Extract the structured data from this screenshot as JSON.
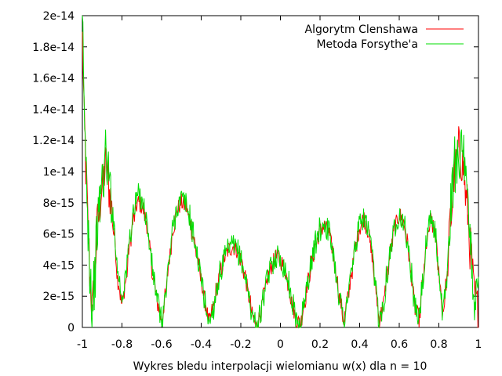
{
  "chart_data": {
    "type": "line",
    "title": "",
    "xlabel": "Wykres bledu interpolacji wielomianu w(x) dla n = 10",
    "ylabel": "",
    "xlim": [
      -1,
      1
    ],
    "ylim": [
      0,
      2e-14
    ],
    "x_ticks": [
      {
        "value": -1,
        "label": "-1"
      },
      {
        "value": -0.8,
        "label": "-0.8"
      },
      {
        "value": -0.6,
        "label": "-0.6"
      },
      {
        "value": -0.4,
        "label": "-0.4"
      },
      {
        "value": -0.2,
        "label": "-0.2"
      },
      {
        "value": 0,
        "label": "0"
      },
      {
        "value": 0.2,
        "label": "0.2"
      },
      {
        "value": 0.4,
        "label": "0.4"
      },
      {
        "value": 0.6,
        "label": "0.6"
      },
      {
        "value": 0.8,
        "label": "0.8"
      },
      {
        "value": 1,
        "label": "1"
      }
    ],
    "y_ticks": [
      {
        "value": 0,
        "label": "0"
      },
      {
        "value": 2e-15,
        "label": "2e-15"
      },
      {
        "value": 4e-15,
        "label": "4e-15"
      },
      {
        "value": 6e-15,
        "label": "6e-15"
      },
      {
        "value": 8e-15,
        "label": "8e-15"
      },
      {
        "value": 1e-14,
        "label": "1e-14"
      },
      {
        "value": 1.2e-14,
        "label": "1.2e-14"
      },
      {
        "value": 1.4e-14,
        "label": "1.4e-14"
      },
      {
        "value": 1.6e-14,
        "label": "1.6e-14"
      },
      {
        "value": 1.8e-14,
        "label": "1.8e-14"
      },
      {
        "value": 2e-14,
        "label": "2e-14"
      }
    ],
    "grid": false,
    "legend_position": "top-right",
    "series": [
      {
        "name": "Algorytm Clenshawa",
        "color": "#ff0000",
        "x": [
          -1,
          -0.99,
          -0.98,
          -0.97,
          -0.96,
          -0.95,
          -0.94,
          -0.92,
          -0.9,
          -0.88,
          -0.86,
          -0.84,
          -0.82,
          -0.8,
          -0.78,
          -0.76,
          -0.74,
          -0.72,
          -0.7,
          -0.68,
          -0.66,
          -0.64,
          -0.62,
          -0.6,
          -0.58,
          -0.56,
          -0.54,
          -0.52,
          -0.5,
          -0.48,
          -0.46,
          -0.44,
          -0.42,
          -0.4,
          -0.38,
          -0.36,
          -0.34,
          -0.32,
          -0.3,
          -0.28,
          -0.26,
          -0.24,
          -0.22,
          -0.2,
          -0.18,
          -0.16,
          -0.14,
          -0.12,
          -0.1,
          -0.08,
          -0.06,
          -0.04,
          -0.02,
          0,
          0.02,
          0.04,
          0.06,
          0.08,
          0.1,
          0.12,
          0.14,
          0.16,
          0.18,
          0.2,
          0.22,
          0.24,
          0.26,
          0.28,
          0.3,
          0.32,
          0.34,
          0.36,
          0.38,
          0.4,
          0.42,
          0.44,
          0.46,
          0.48,
          0.5,
          0.52,
          0.54,
          0.56,
          0.58,
          0.6,
          0.62,
          0.64,
          0.66,
          0.68,
          0.7,
          0.72,
          0.74,
          0.76,
          0.78,
          0.8,
          0.82,
          0.84,
          0.86,
          0.88,
          0.9,
          0.92,
          0.94,
          0.96,
          0.98,
          1
        ],
        "y": [
          1.85e-14,
          1.3e-14,
          9.5e-15,
          6e-15,
          3e-15,
          1e-15,
          3.5e-15,
          7e-15,
          9e-15,
          1.05e-14,
          8.5e-15,
          6e-15,
          3e-15,
          1.5e-15,
          3e-15,
          5.5e-15,
          7e-15,
          8e-15,
          7.8e-15,
          7e-15,
          5e-15,
          3e-15,
          1.5e-15,
          5e-16,
          2e-15,
          4.5e-15,
          6.5e-15,
          7.6e-15,
          8e-15,
          7.8e-15,
          7e-15,
          5.8e-15,
          4.5e-15,
          3e-15,
          1.6e-15,
          3e-16,
          1.2e-15,
          2.6e-15,
          3.7e-15,
          4.5e-15,
          5e-15,
          5.2e-15,
          5e-15,
          4.4e-15,
          3.4e-15,
          2e-15,
          7e-16,
          0,
          9e-16,
          2.2e-15,
          3.4e-15,
          4.1e-15,
          4.5e-15,
          4.3e-15,
          3.8e-15,
          2.8e-15,
          1.5e-15,
          5e-16,
          2e-16,
          1.5e-15,
          3e-15,
          4.3e-15,
          5.4e-15,
          6.2e-15,
          6.5e-15,
          6.2e-15,
          5.2e-15,
          3.6e-15,
          1.8e-15,
          5e-16,
          1.8e-15,
          3.6e-15,
          5.2e-15,
          6.4e-15,
          7e-15,
          6.3e-15,
          4.8e-15,
          2.5e-15,
          5e-16,
          1.5e-15,
          3.5e-15,
          5.2e-15,
          6.5e-15,
          7.2e-15,
          6.8e-15,
          5.5e-15,
          3.4e-15,
          1.2e-15,
          6e-16,
          3e-15,
          5.5e-15,
          6.8e-15,
          6e-15,
          3.5e-15,
          1e-15,
          3e-15,
          7e-15,
          1e-14,
          1.15e-14,
          1.05e-14,
          8e-15,
          5e-15,
          2e-15,
          1e-15
        ],
        "jitter": 6e-16
      },
      {
        "name": "Metoda Forsythe'a",
        "color": "#00dd00",
        "x": [
          -1,
          -0.99,
          -0.98,
          -0.97,
          -0.96,
          -0.95,
          -0.94,
          -0.92,
          -0.9,
          -0.88,
          -0.86,
          -0.84,
          -0.82,
          -0.8,
          -0.78,
          -0.76,
          -0.74,
          -0.72,
          -0.7,
          -0.68,
          -0.66,
          -0.64,
          -0.62,
          -0.6,
          -0.58,
          -0.56,
          -0.54,
          -0.52,
          -0.5,
          -0.48,
          -0.46,
          -0.44,
          -0.42,
          -0.4,
          -0.38,
          -0.36,
          -0.34,
          -0.32,
          -0.3,
          -0.28,
          -0.26,
          -0.24,
          -0.22,
          -0.2,
          -0.18,
          -0.16,
          -0.14,
          -0.12,
          -0.1,
          -0.08,
          -0.06,
          -0.04,
          -0.02,
          0,
          0.02,
          0.04,
          0.06,
          0.08,
          0.1,
          0.12,
          0.14,
          0.16,
          0.18,
          0.2,
          0.22,
          0.24,
          0.26,
          0.28,
          0.3,
          0.32,
          0.34,
          0.36,
          0.38,
          0.4,
          0.42,
          0.44,
          0.46,
          0.48,
          0.5,
          0.52,
          0.54,
          0.56,
          0.58,
          0.6,
          0.62,
          0.64,
          0.66,
          0.68,
          0.7,
          0.72,
          0.74,
          0.76,
          0.78,
          0.8,
          0.82,
          0.84,
          0.86,
          0.88,
          0.9,
          0.92,
          0.94,
          0.96,
          0.98,
          1
        ],
        "y": [
          1.95e-14,
          1.35e-14,
          1e-14,
          6.5e-15,
          3.5e-15,
          1e-15,
          3e-15,
          7e-15,
          9.5e-15,
          1.1e-14,
          9e-15,
          6.5e-15,
          3.5e-15,
          2e-15,
          3.5e-15,
          5.8e-15,
          7.5e-15,
          8.5e-15,
          8.3e-15,
          7.2e-15,
          5.2e-15,
          3.2e-15,
          1.6e-15,
          5e-16,
          2e-15,
          4.6e-15,
          6.6e-15,
          7.8e-15,
          8.2e-15,
          8e-15,
          7.2e-15,
          6e-15,
          4.6e-15,
          3.1e-15,
          1.6e-15,
          3e-16,
          1.2e-15,
          2.6e-15,
          3.7e-15,
          4.5e-15,
          5e-15,
          5.2e-15,
          5e-15,
          4.4e-15,
          3.4e-15,
          2e-15,
          7e-16,
          0,
          9e-16,
          2.2e-15,
          3.4e-15,
          4.2e-15,
          4.6e-15,
          4.4e-15,
          3.9e-15,
          2.9e-15,
          1.6e-15,
          5e-16,
          2e-16,
          1.5e-15,
          3.1e-15,
          4.4e-15,
          5.5e-15,
          6.3e-15,
          6.7e-15,
          6.3e-15,
          5.3e-15,
          3.6e-15,
          1.8e-15,
          5e-16,
          1.9e-15,
          3.7e-15,
          5.3e-15,
          6.5e-15,
          7.1e-15,
          6.4e-15,
          4.9e-15,
          2.6e-15,
          5e-16,
          1.6e-15,
          3.6e-15,
          5.3e-15,
          6.6e-15,
          7.3e-15,
          6.9e-15,
          5.6e-15,
          3.5e-15,
          1.2e-15,
          6e-16,
          3.1e-15,
          5.6e-15,
          7e-15,
          6.2e-15,
          3.6e-15,
          1e-15,
          3.2e-15,
          7.5e-15,
          1.05e-14,
          1.15e-14,
          1.1e-14,
          8.5e-15,
          5.2e-15,
          2e-15,
          2e-15
        ],
        "jitter": 8e-16
      }
    ]
  }
}
